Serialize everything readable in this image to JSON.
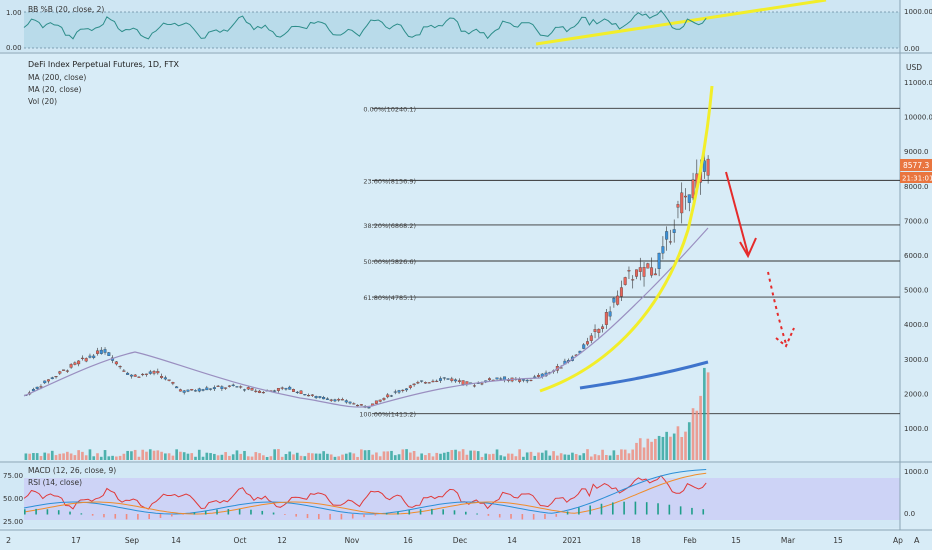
{
  "chart_data": {
    "type": "candlestick",
    "symbol_title": "DeFi Index Perpetual Futures, 1D, FTX",
    "indicators": [
      "MA (200, close)",
      "MA (20, close)",
      "Vol (20)"
    ],
    "currency": "USD",
    "price_axis": {
      "ticks": [
        "11000.0",
        "10000.0",
        "9000.0",
        "8000.0",
        "7000.0",
        "6000.0",
        "5000.0",
        "4000.0",
        "3000.0",
        "2000.0",
        "1000.0"
      ]
    },
    "last_price": "8577.3",
    "countdown": "21:31:01",
    "x_axis": {
      "ticks": [
        "17",
        "Sep",
        "14",
        "Oct",
        "12",
        "Nov",
        "16",
        "Dec",
        "14",
        "2021",
        "18",
        "Feb",
        "15",
        "Mar",
        "15",
        "Ap"
      ]
    },
    "fibonacci": [
      {
        "label": "0.00%(10240.1)",
        "value": 10240.1
      },
      {
        "label": "23.60%(8156.9)",
        "value": 8156.9
      },
      {
        "label": "38.20%(6868.2)",
        "value": 6868.2
      },
      {
        "label": "50.00%(5826.6)",
        "value": 5826.6
      },
      {
        "label": "61.80%(4785.1)",
        "value": 4785.1
      },
      {
        "label": "100.00%(1413.2)",
        "value": 1413.2
      }
    ],
    "top_panel": {
      "title": "BB %B (20, close, 2)",
      "left_ticks": [
        "1.00",
        "0.00"
      ],
      "right_ticks": [
        "1000.00",
        "0.00"
      ]
    },
    "bottom_panel": {
      "macd_title": "MACD (12, 26, close, 9)",
      "rsi_title": "RSI (14, close)",
      "left_ticks": [
        "75.00",
        "50.00",
        "25.00"
      ],
      "right_ticks": [
        "1000.0",
        "0.0"
      ]
    },
    "corner_left": "2",
    "corner_right": "A",
    "price_series": [
      {
        "d": "2020-08-10",
        "c": 1950
      },
      {
        "d": "2020-08-17",
        "c": 2450
      },
      {
        "d": "2020-08-24",
        "c": 2900
      },
      {
        "d": "2020-08-31",
        "c": 3250
      },
      {
        "d": "2020-09-07",
        "c": 2500
      },
      {
        "d": "2020-09-14",
        "c": 2600
      },
      {
        "d": "2020-09-21",
        "c": 2050
      },
      {
        "d": "2020-09-28",
        "c": 2150
      },
      {
        "d": "2020-10-05",
        "c": 2200
      },
      {
        "d": "2020-10-12",
        "c": 2050
      },
      {
        "d": "2020-10-19",
        "c": 2150
      },
      {
        "d": "2020-10-26",
        "c": 1900
      },
      {
        "d": "2020-11-02",
        "c": 1800
      },
      {
        "d": "2020-11-09",
        "c": 1600
      },
      {
        "d": "2020-11-16",
        "c": 2000
      },
      {
        "d": "2020-11-23",
        "c": 2300
      },
      {
        "d": "2020-11-30",
        "c": 2450
      },
      {
        "d": "2020-12-07",
        "c": 2250
      },
      {
        "d": "2020-12-14",
        "c": 2450
      },
      {
        "d": "2020-12-21",
        "c": 2350
      },
      {
        "d": "2020-12-28",
        "c": 2600
      },
      {
        "d": "2021-01-04",
        "c": 3100
      },
      {
        "d": "2021-01-11",
        "c": 4000
      },
      {
        "d": "2021-01-18",
        "c": 5400
      },
      {
        "d": "2021-01-25",
        "c": 5600
      },
      {
        "d": "2021-02-01",
        "c": 7500
      },
      {
        "d": "2021-02-08",
        "c": 8577
      }
    ]
  }
}
